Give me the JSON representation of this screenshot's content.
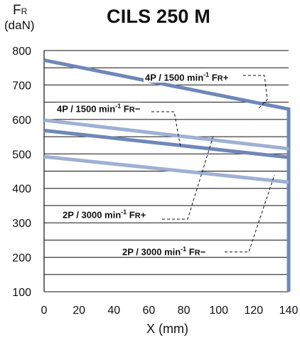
{
  "chart_data": {
    "type": "line",
    "title": "CILS 250 M",
    "ylabel": "FR",
    "ylabel_unit": "(daN)",
    "xlabel": "X (mm)",
    "xlim": [
      0,
      140
    ],
    "ylim": [
      100,
      800
    ],
    "xticks": [
      0,
      20,
      40,
      60,
      80,
      100,
      120,
      140
    ],
    "yticks": [
      100,
      200,
      300,
      400,
      500,
      600,
      700,
      800
    ],
    "grid": true,
    "series": [
      {
        "name": "4P / 1500 min-1 FR+",
        "x": [
          0,
          140,
          140
        ],
        "y": [
          772,
          630,
          100
        ],
        "color": "#6f87b8"
      },
      {
        "name": "4P / 1500 min-1 FR−",
        "x": [
          0,
          140
        ],
        "y": [
          598,
          515
        ],
        "color": "#9fb0d3"
      },
      {
        "name": "2P / 3000 min-1 FR+",
        "x": [
          0,
          140
        ],
        "y": [
          568,
          490
        ],
        "color": "#6f87b8"
      },
      {
        "name": "2P / 3000 min-1 FR−",
        "x": [
          0,
          140
        ],
        "y": [
          492,
          418
        ],
        "color": "#9fb0d3"
      }
    ]
  },
  "labels": {
    "fr_main": "F",
    "fr_sub": "R",
    "unit": "(daN)",
    "xlabel": "X (mm)"
  },
  "annotations": [
    {
      "pre": "4P / 1500 min",
      "sup": "-1",
      "f": " F",
      "sc": "R",
      "sign": "+"
    },
    {
      "pre": "4P / 1500 min",
      "sup": "-1",
      "f": " F",
      "sc": "R",
      "sign": "−"
    },
    {
      "pre": "2P / 3000 min",
      "sup": "-1",
      "f": " F",
      "sc": "R",
      "sign": "+"
    },
    {
      "pre": "2P / 3000 min",
      "sup": "-1",
      "f": " F",
      "sc": "R",
      "sign": "−"
    }
  ]
}
